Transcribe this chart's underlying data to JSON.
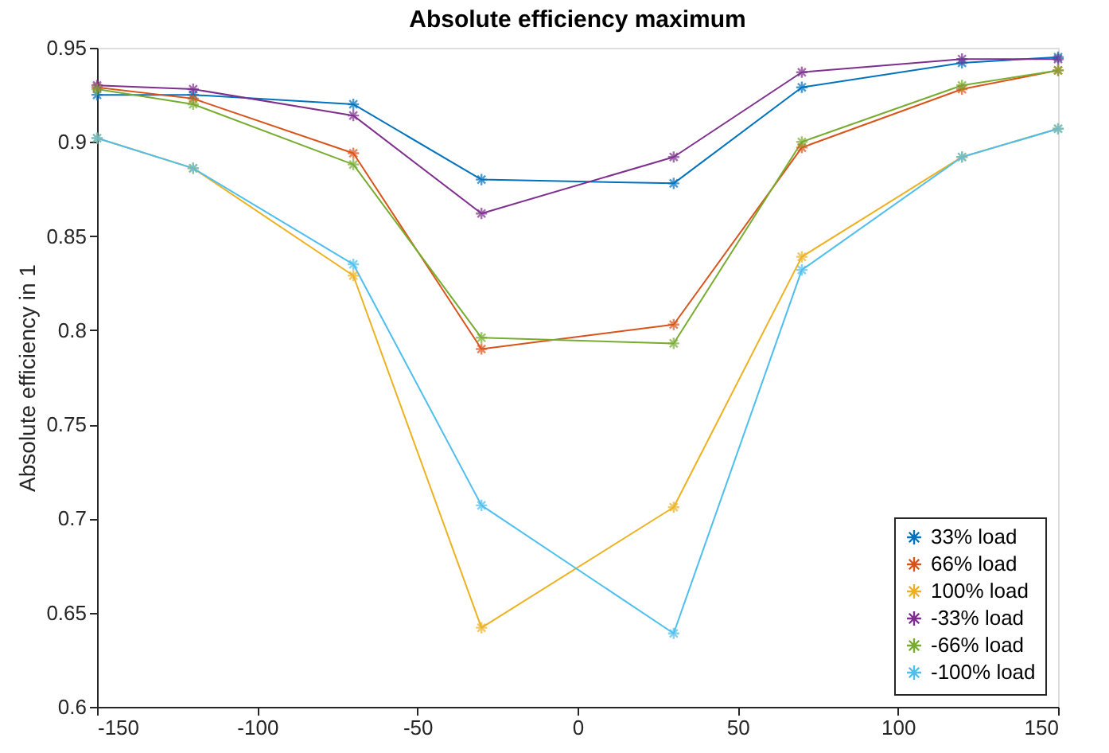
{
  "chart_data": {
    "type": "line",
    "title": "Absolute efficiency maximum",
    "ylabel": "Absolute efficiency in 1",
    "x": [
      -150,
      -120,
      -70,
      -30,
      30,
      70,
      120,
      150
    ],
    "series": [
      {
        "name": "33% load",
        "color": "#0072bd",
        "values": [
          0.925,
          0.925,
          0.92,
          0.88,
          0.878,
          0.929,
          0.942,
          0.945
        ]
      },
      {
        "name": "66% load",
        "color": "#d95319",
        "values": [
          0.929,
          0.923,
          0.894,
          0.79,
          0.803,
          0.897,
          0.928,
          0.938
        ]
      },
      {
        "name": "100% load",
        "color": "#edb120",
        "values": [
          0.902,
          0.886,
          0.829,
          0.642,
          0.706,
          0.839,
          0.892,
          0.907
        ]
      },
      {
        "name": "-33% load",
        "color": "#7e2f8e",
        "values": [
          0.93,
          0.928,
          0.914,
          0.862,
          0.892,
          0.937,
          0.944,
          0.944
        ]
      },
      {
        "name": "-66% load",
        "color": "#77ac30",
        "values": [
          0.928,
          0.92,
          0.888,
          0.796,
          0.793,
          0.9,
          0.93,
          0.938
        ]
      },
      {
        "name": "-100% load",
        "color": "#4dbeee",
        "values": [
          0.902,
          0.886,
          0.835,
          0.707,
          0.639,
          0.832,
          0.892,
          0.907
        ]
      }
    ],
    "xlim": [
      -150,
      150
    ],
    "xticks": [
      -150,
      -100,
      -50,
      0,
      50,
      100,
      150
    ],
    "ylim": [
      0.6,
      0.95
    ],
    "yticks": [
      0.6,
      0.65,
      0.7,
      0.75,
      0.8,
      0.85,
      0.9,
      0.95
    ],
    "grid": false,
    "legend": "bottom right",
    "marker": "cross",
    "line_style": "solid"
  }
}
